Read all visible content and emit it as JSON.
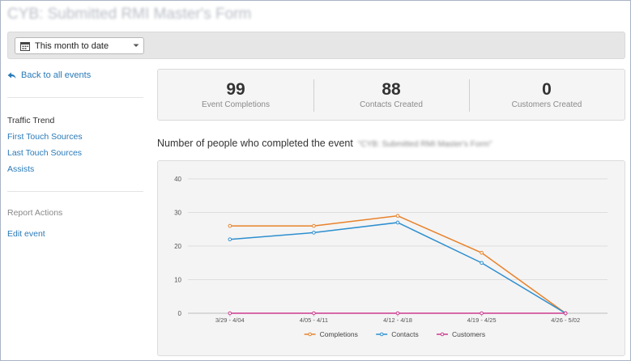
{
  "page": {
    "title": "CYB: Submitted RMI Master's Form"
  },
  "toolbar": {
    "date_range": "This month to date",
    "calendar_icon": "calendar-icon",
    "dropdown_icon": "chevron-down-icon"
  },
  "sidebar": {
    "back_label": "Back to all events",
    "section_title": "Traffic Trend",
    "links": [
      "First Touch Sources",
      "Last Touch Sources",
      "Assists"
    ],
    "actions_title": "Report Actions",
    "edit_label": "Edit event"
  },
  "stats": [
    {
      "value": "99",
      "label": "Event Completions"
    },
    {
      "value": "88",
      "label": "Contacts Created"
    },
    {
      "value": "0",
      "label": "Customers Created"
    }
  ],
  "chart_heading": {
    "prefix": "Number of people who completed the event",
    "event_name": "\"CYB: Submitted RMI Master's Form\""
  },
  "chart_data": {
    "type": "line",
    "categories": [
      "3/29 - 4/04",
      "4/05 - 4/11",
      "4/12 - 4/18",
      "4/19 - 4/25",
      "4/26 - 5/02"
    ],
    "ylim": [
      0,
      40
    ],
    "yticks": [
      0,
      10,
      20,
      30,
      40
    ],
    "grid": true,
    "legend_position": "bottom",
    "series": [
      {
        "name": "Completions",
        "color": "#e8822a",
        "values": [
          26,
          26,
          29,
          18,
          0
        ]
      },
      {
        "name": "Contacts",
        "color": "#2d8fd0",
        "values": [
          22,
          24,
          27,
          15,
          0
        ]
      },
      {
        "name": "Customers",
        "color": "#cc3b8e",
        "values": [
          0,
          0,
          0,
          0,
          0
        ]
      }
    ]
  }
}
